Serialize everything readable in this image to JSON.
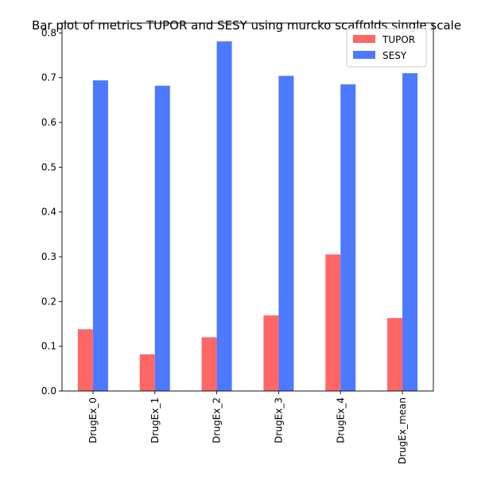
{
  "chart_data": {
    "type": "bar",
    "title": "Bar plot of metrics TUPOR and SESY using murcko scaffolds single scale",
    "xlabel": "",
    "ylabel": "",
    "categories": [
      "DrugEx_0",
      "DrugEx_1",
      "DrugEx_2",
      "DrugEx_3",
      "DrugEx_4",
      "DrugEx_mean"
    ],
    "series": [
      {
        "name": "TUPOR",
        "color": "#ff6666",
        "values": [
          0.138,
          0.082,
          0.12,
          0.169,
          0.305,
          0.163
        ]
      },
      {
        "name": "SESY",
        "color": "#4d79ff",
        "values": [
          0.694,
          0.682,
          0.781,
          0.704,
          0.685,
          0.71
        ]
      }
    ],
    "ylim": [
      0,
      0.822
    ],
    "yticks": [
      0.0,
      0.1,
      0.2,
      0.3,
      0.4,
      0.5,
      0.6,
      0.7,
      0.8
    ],
    "ytick_labels": [
      "0.0",
      "0.1",
      "0.2",
      "0.3",
      "0.4",
      "0.5",
      "0.6",
      "0.7",
      "0.8"
    ],
    "grid": false,
    "legend_position": "top-right"
  }
}
